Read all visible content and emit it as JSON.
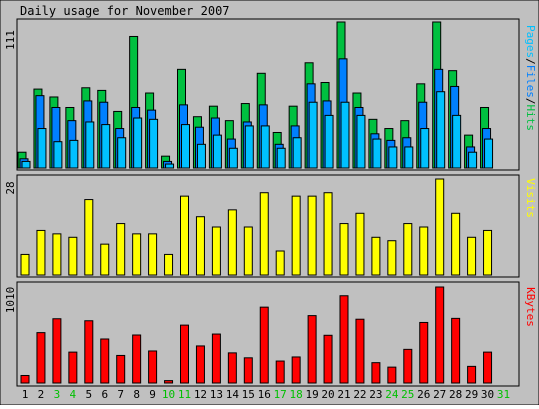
{
  "chart_title": "Daily usage for November 2007",
  "colors": {
    "background": "#c0c0c0",
    "pages": "#00c0ff",
    "files": "#0080ff",
    "hits": "#00c040",
    "visits": "#ffff00",
    "kbytes": "#ff0000",
    "weekday_label": "#000000",
    "weekend_label": "#00c000"
  },
  "chart_data": [
    {
      "type": "bar",
      "title": "Daily usage for November 2007",
      "ylabel": "Pages/Files/Hits",
      "y_max_label": "111",
      "ylim": [
        0,
        111
      ],
      "grid": false,
      "categories": [
        "1",
        "2",
        "3",
        "4",
        "5",
        "6",
        "7",
        "8",
        "9",
        "10",
        "11",
        "12",
        "13",
        "14",
        "15",
        "16",
        "17",
        "18",
        "19",
        "20",
        "21",
        "22",
        "23",
        "24",
        "25",
        "26",
        "27",
        "28",
        "29",
        "30",
        "31"
      ],
      "series": [
        {
          "name": "Hits",
          "values": [
            12,
            60,
            54,
            46,
            61,
            59,
            43,
            100,
            57,
            9,
            75,
            39,
            47,
            36,
            49,
            72,
            27,
            47,
            80,
            65,
            111,
            57,
            37,
            30,
            36,
            64,
            111,
            74,
            25,
            46,
            0
          ]
        },
        {
          "name": "Files",
          "values": [
            7,
            55,
            46,
            36,
            51,
            50,
            30,
            46,
            44,
            5,
            48,
            31,
            38,
            22,
            35,
            48,
            18,
            32,
            64,
            51,
            83,
            46,
            26,
            21,
            23,
            50,
            75,
            62,
            16,
            30,
            0
          ]
        },
        {
          "name": "Pages",
          "values": [
            5,
            30,
            20,
            21,
            35,
            33,
            23,
            38,
            37,
            3,
            33,
            18,
            25,
            15,
            32,
            32,
            15,
            23,
            50,
            40,
            50,
            40,
            22,
            16,
            16,
            30,
            58,
            40,
            12,
            22,
            0
          ]
        }
      ]
    },
    {
      "type": "bar",
      "ylabel": "Visits",
      "y_max_label": "28",
      "ylim": [
        0,
        28
      ],
      "grid": false,
      "categories": [
        "1",
        "2",
        "3",
        "4",
        "5",
        "6",
        "7",
        "8",
        "9",
        "10",
        "11",
        "12",
        "13",
        "14",
        "15",
        "16",
        "17",
        "18",
        "19",
        "20",
        "21",
        "22",
        "23",
        "24",
        "25",
        "26",
        "27",
        "28",
        "29",
        "30",
        "31"
      ],
      "series": [
        {
          "name": "Visits",
          "values": [
            6,
            13,
            12,
            11,
            22,
            9,
            15,
            12,
            12,
            6,
            23,
            17,
            14,
            19,
            14,
            24,
            7,
            23,
            23,
            24,
            15,
            18,
            11,
            10,
            15,
            14,
            28,
            18,
            11,
            13,
            0
          ]
        }
      ]
    },
    {
      "type": "bar",
      "ylabel": "KBytes",
      "y_max_label": "1010",
      "ylim": [
        0,
        1010
      ],
      "grid": false,
      "categories": [
        "1",
        "2",
        "3",
        "4",
        "5",
        "6",
        "7",
        "8",
        "9",
        "10",
        "11",
        "12",
        "13",
        "14",
        "15",
        "16",
        "17",
        "18",
        "19",
        "20",
        "21",
        "22",
        "23",
        "24",
        "25",
        "26",
        "27",
        "28",
        "29",
        "30",
        "31"
      ],
      "series": [
        {
          "name": "KBytes",
          "values": [
            79,
            530,
            676,
            325,
            655,
            463,
            290,
            505,
            337,
            25,
            609,
            390,
            515,
            317,
            265,
            798,
            231,
            274,
            709,
            502,
            918,
            671,
            214,
            167,
            354,
            637,
            1010,
            680,
            175,
            325,
            0
          ]
        }
      ]
    }
  ],
  "weekend_days": [
    "3",
    "4",
    "10",
    "11",
    "17",
    "18",
    "24",
    "25",
    "31"
  ]
}
